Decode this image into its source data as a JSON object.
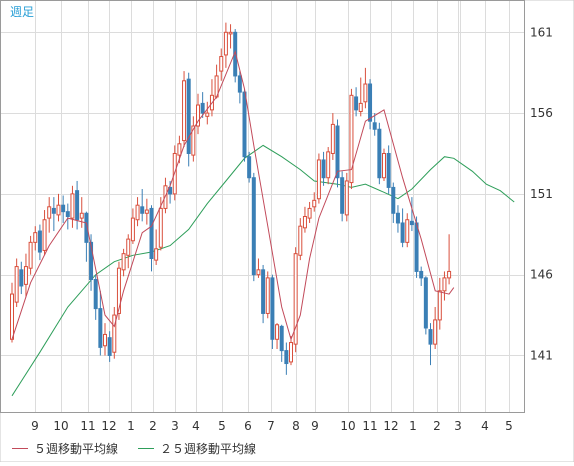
{
  "chart_data": {
    "type": "candlestick",
    "period_label": "週足",
    "y_ticks": [
      141,
      146,
      151,
      156,
      161
    ],
    "ylim": [
      137.5,
      163.0
    ],
    "x_labels": [
      "9",
      "10",
      "11",
      "12",
      "1",
      "2",
      "3",
      "4",
      "5",
      "6",
      "7",
      "8",
      "9",
      "10",
      "11",
      "12",
      "1",
      "2",
      "3",
      "4",
      "5"
    ],
    "grid": true,
    "colors": {
      "up": "#d94f3c",
      "down": "#3b7fb5",
      "ma5": "#c24a5a",
      "ma25": "#2e9e5a",
      "grid": "#dcdcdc",
      "axis_text": "#333333",
      "period_label": "#2a9fd6"
    },
    "legend": [
      {
        "name": "５週移動平均線",
        "color": "#c24a5a"
      },
      {
        "name": "２５週移動平均線",
        "color": "#2e9e5a"
      }
    ],
    "candles": [
      [
        142.0,
        144.8,
        141.8,
        145.5
      ],
      [
        144.3,
        146.5,
        144.0,
        147.0
      ],
      [
        146.3,
        145.3,
        144.8,
        146.8
      ],
      [
        145.4,
        146.5,
        144.6,
        147.3
      ],
      [
        146.4,
        148.0,
        146.0,
        148.4
      ],
      [
        148.0,
        148.6,
        147.5,
        149.0
      ],
      [
        148.7,
        147.4,
        146.9,
        149.1
      ],
      [
        147.5,
        149.4,
        147.2,
        150.0
      ],
      [
        149.5,
        150.2,
        148.6,
        150.8
      ],
      [
        150.1,
        149.8,
        148.7,
        150.8
      ],
      [
        149.7,
        150.3,
        149.3,
        151.0
      ],
      [
        150.3,
        149.9,
        149.2,
        150.9
      ],
      [
        149.9,
        149.6,
        148.8,
        150.4
      ],
      [
        149.5,
        151.0,
        148.9,
        151.5
      ],
      [
        151.2,
        149.4,
        148.8,
        151.8
      ],
      [
        149.5,
        149.8,
        148.9,
        150.8
      ],
      [
        149.8,
        148.0,
        146.8,
        149.9
      ],
      [
        148.0,
        145.7,
        145.0,
        148.5
      ],
      [
        145.7,
        143.9,
        143.2,
        146.0
      ],
      [
        143.9,
        141.5,
        141.0,
        145.0
      ],
      [
        141.6,
        142.3,
        141.0,
        143.0
      ],
      [
        142.1,
        141.0,
        140.6,
        142.5
      ],
      [
        141.2,
        143.5,
        140.8,
        144.0
      ],
      [
        143.6,
        146.4,
        143.2,
        146.8
      ],
      [
        146.3,
        147.3,
        145.9,
        147.6
      ],
      [
        147.2,
        148.2,
        146.4,
        148.5
      ],
      [
        148.1,
        149.5,
        147.9,
        150.1
      ],
      [
        149.4,
        150.3,
        149.0,
        150.8
      ],
      [
        150.2,
        149.8,
        149.3,
        151.3
      ],
      [
        149.8,
        150.0,
        149.1,
        150.7
      ],
      [
        150.1,
        147.0,
        146.2,
        150.3
      ],
      [
        146.9,
        147.6,
        146.6,
        148.8
      ],
      [
        147.7,
        150.1,
        147.5,
        150.8
      ],
      [
        150.1,
        151.5,
        149.8,
        152.0
      ],
      [
        151.4,
        151.0,
        150.4,
        151.8
      ],
      [
        151.0,
        153.5,
        150.6,
        154.0
      ],
      [
        153.4,
        154.1,
        152.9,
        154.6
      ],
      [
        154.3,
        158.0,
        153.9,
        158.6
      ],
      [
        158.1,
        153.5,
        152.7,
        158.5
      ],
      [
        153.4,
        155.2,
        153.0,
        155.8
      ],
      [
        155.2,
        156.5,
        154.7,
        157.2
      ],
      [
        156.6,
        156.0,
        155.7,
        157.3
      ],
      [
        155.8,
        156.0,
        155.3,
        156.7
      ],
      [
        156.2,
        157.1,
        155.8,
        158.1
      ],
      [
        157.0,
        158.3,
        156.9,
        159.0
      ],
      [
        158.6,
        159.5,
        158.0,
        160.0
      ],
      [
        159.6,
        161.0,
        158.8,
        161.6
      ],
      [
        160.9,
        161.0,
        160.0,
        161.5
      ],
      [
        161.0,
        158.3,
        157.9,
        161.2
      ],
      [
        158.3,
        157.3,
        156.6,
        158.6
      ],
      [
        157.3,
        153.3,
        153.0,
        157.5
      ],
      [
        153.3,
        152.0,
        151.7,
        153.6
      ],
      [
        152.0,
        146.0,
        145.6,
        152.3
      ],
      [
        146.0,
        146.3,
        145.8,
        147.0
      ],
      [
        146.3,
        143.6,
        143.0,
        146.6
      ],
      [
        143.6,
        145.8,
        143.3,
        146.2
      ],
      [
        145.8,
        142.0,
        141.4,
        146.0
      ],
      [
        142.0,
        142.9,
        141.4,
        143.0
      ],
      [
        142.8,
        141.3,
        140.6,
        142.9
      ],
      [
        141.3,
        140.5,
        139.8,
        141.8
      ],
      [
        140.6,
        141.8,
        140.4,
        142.2
      ],
      [
        141.7,
        147.3,
        141.2,
        147.7
      ],
      [
        147.2,
        149.0,
        146.9,
        149.5
      ],
      [
        148.9,
        149.6,
        148.6,
        150.2
      ],
      [
        149.5,
        150.1,
        149.2,
        150.5
      ],
      [
        150.2,
        150.6,
        149.9,
        151.1
      ],
      [
        150.7,
        153.1,
        150.4,
        153.5
      ],
      [
        153.1,
        152.0,
        151.5,
        153.6
      ],
      [
        152.0,
        153.6,
        151.6,
        153.9
      ],
      [
        153.5,
        155.3,
        153.1,
        156.0
      ],
      [
        155.2,
        152.0,
        151.4,
        155.6
      ],
      [
        152.0,
        149.8,
        149.3,
        152.4
      ],
      [
        149.7,
        151.8,
        149.3,
        152.3
      ],
      [
        151.7,
        157.1,
        151.3,
        157.5
      ],
      [
        157.0,
        156.2,
        155.8,
        157.6
      ],
      [
        156.1,
        156.6,
        155.8,
        158.2
      ],
      [
        156.7,
        157.8,
        156.3,
        158.8
      ],
      [
        157.8,
        155.5,
        155.0,
        158.1
      ],
      [
        155.4,
        155.0,
        154.6,
        156.0
      ],
      [
        155.0,
        152.0,
        151.6,
        155.4
      ],
      [
        152.0,
        153.5,
        151.8,
        153.8
      ],
      [
        153.5,
        151.4,
        151.0,
        154.0
      ],
      [
        151.4,
        149.8,
        149.2,
        151.7
      ],
      [
        149.8,
        149.2,
        148.6,
        150.3
      ],
      [
        149.2,
        148.0,
        147.7,
        150.1
      ],
      [
        148.0,
        149.4,
        147.7,
        149.8
      ],
      [
        149.3,
        149.1,
        148.7,
        150.8
      ],
      [
        149.2,
        146.2,
        145.8,
        149.6
      ],
      [
        146.2,
        145.8,
        145.3,
        146.5
      ],
      [
        145.8,
        142.7,
        142.3,
        145.9
      ],
      [
        142.6,
        141.7,
        140.4,
        143.0
      ],
      [
        141.7,
        143.2,
        141.4,
        144.0
      ],
      [
        143.2,
        145.0,
        142.6,
        145.8
      ],
      [
        145.0,
        145.8,
        144.4,
        146.2
      ],
      [
        145.8,
        146.2,
        145.4,
        148.5
      ]
    ],
    "ma5": [
      [
        0,
        142.0
      ],
      [
        4,
        145.5
      ],
      [
        8,
        147.8
      ],
      [
        12,
        149.5
      ],
      [
        16,
        149.2
      ],
      [
        20,
        143.5
      ],
      [
        22,
        142.8
      ],
      [
        24,
        145.0
      ],
      [
        28,
        148.6
      ],
      [
        30,
        149.0
      ],
      [
        34,
        151.5
      ],
      [
        37,
        154.0
      ],
      [
        40,
        155.5
      ],
      [
        44,
        157.0
      ],
      [
        48,
        159.8
      ],
      [
        50,
        157.5
      ],
      [
        52,
        154.0
      ],
      [
        55,
        149.0
      ],
      [
        58,
        144.0
      ],
      [
        60,
        142.0
      ],
      [
        62,
        143.5
      ],
      [
        64,
        147.0
      ],
      [
        66,
        149.5
      ],
      [
        70,
        152.4
      ],
      [
        73,
        152.5
      ],
      [
        76,
        155.5
      ],
      [
        80,
        156.2
      ],
      [
        84,
        152.0
      ],
      [
        88,
        148.2
      ],
      [
        91,
        145.0
      ],
      [
        94,
        144.8
      ],
      [
        95,
        145.2
      ]
    ],
    "ma25": [
      [
        0,
        138.5
      ],
      [
        6,
        141.2
      ],
      [
        12,
        144.0
      ],
      [
        18,
        146.0
      ],
      [
        22,
        146.8
      ],
      [
        26,
        147.2
      ],
      [
        30,
        147.4
      ],
      [
        34,
        147.8
      ],
      [
        38,
        148.8
      ],
      [
        42,
        150.4
      ],
      [
        46,
        151.8
      ],
      [
        50,
        153.2
      ],
      [
        54,
        154.0
      ],
      [
        58,
        153.3
      ],
      [
        62,
        152.5
      ],
      [
        65,
        151.8
      ],
      [
        70,
        151.6
      ],
      [
        73,
        151.4
      ],
      [
        76,
        151.6
      ],
      [
        80,
        151.1
      ],
      [
        83,
        150.7
      ],
      [
        86,
        151.3
      ],
      [
        90,
        152.5
      ],
      [
        93,
        153.3
      ],
      [
        95,
        153.2
      ],
      [
        99,
        152.4
      ],
      [
        102,
        151.6
      ],
      [
        105,
        151.2
      ],
      [
        108,
        150.5
      ]
    ]
  }
}
